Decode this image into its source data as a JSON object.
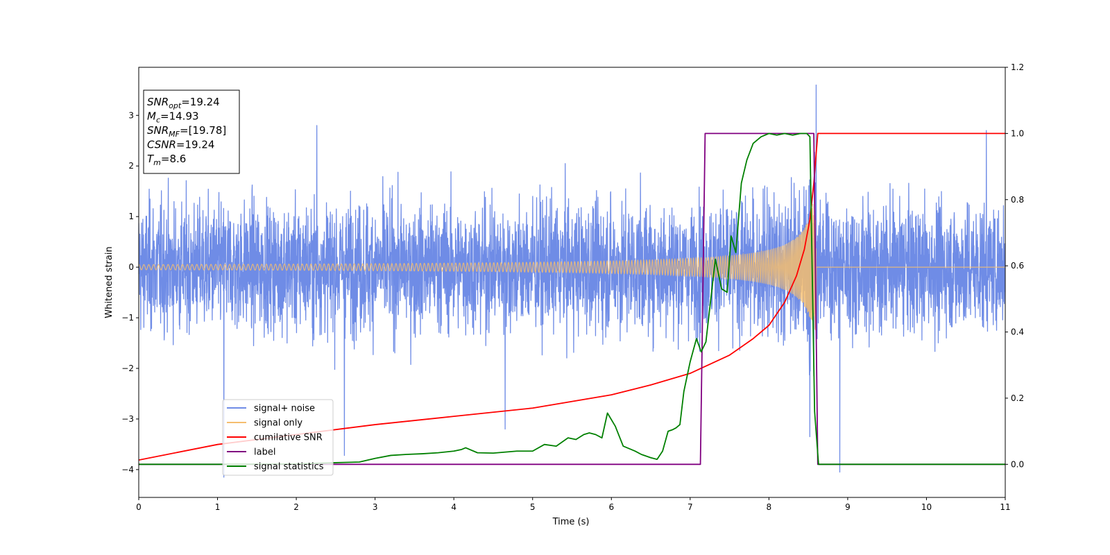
{
  "chart_data": {
    "type": "line",
    "xlabel": "Time (s)",
    "ylabel_left": "Whitened strain",
    "xlim": [
      0,
      11
    ],
    "ylim_left": [
      -4.55,
      3.95
    ],
    "ylim_right": [
      -0.1,
      1.2
    ],
    "xticks": [
      0,
      1,
      2,
      3,
      4,
      5,
      6,
      7,
      8,
      9,
      10,
      11
    ],
    "yticks_left": [
      -4,
      -3,
      -2,
      -1,
      0,
      1,
      2,
      3
    ],
    "yticks_right": [
      0.0,
      0.2,
      0.4,
      0.6,
      0.8,
      1.0,
      1.2
    ],
    "grid": false,
    "legend_position": "lower-left",
    "annotation": {
      "lines": [
        {
          "sym": "SNR",
          "sub": "opt",
          "text": "=19.24"
        },
        {
          "sym": "M",
          "sub": "c",
          "text": "=14.93"
        },
        {
          "sym": "SNR",
          "sub": "MF",
          "text": "=[19.78]"
        },
        {
          "sym": "CSNR",
          "sub": "",
          "text": "=19.24"
        },
        {
          "sym": "T",
          "sub": "m",
          "text": "=8.6"
        }
      ]
    },
    "series": [
      {
        "name": "signal+ noise",
        "axis": "left",
        "color": "#6f8ce6",
        "description": "whitened strain, noise amplitude about 0.6, extremes near 3.6 and -4.15",
        "outliers": [
          [
            1.08,
            -4.15
          ],
          [
            2.26,
            2.8
          ],
          [
            2.61,
            -3.72
          ],
          [
            4.65,
            -3.2
          ],
          [
            8.52,
            -3.35
          ],
          [
            8.6,
            3.6
          ],
          [
            8.9,
            -4.05
          ],
          [
            10.76,
            2.7
          ]
        ]
      },
      {
        "name": "signal only",
        "axis": "left",
        "color": "#f5bd6e",
        "description": "chirp, amplitude rising from 0.05 to about 1.2, merger near 8.6 s",
        "t_merge": 8.6
      },
      {
        "name": "cumilative SNR",
        "axis": "right",
        "color": "#ff0000",
        "x": [
          0,
          1,
          2,
          3,
          4,
          5,
          6,
          6.5,
          7,
          7.5,
          7.8,
          8.0,
          8.2,
          8.35,
          8.45,
          8.52,
          8.57,
          8.6,
          8.62,
          11
        ],
        "y": [
          0.013,
          0.06,
          0.09,
          0.12,
          0.145,
          0.17,
          0.21,
          0.24,
          0.275,
          0.33,
          0.38,
          0.42,
          0.49,
          0.57,
          0.65,
          0.74,
          0.85,
          0.94,
          1.0,
          1.0
        ]
      },
      {
        "name": "label",
        "axis": "right",
        "color": "#800080",
        "x": [
          0,
          7.13,
          7.19,
          8.57,
          8.62,
          11
        ],
        "y": [
          0,
          0,
          1,
          1,
          0,
          0
        ]
      },
      {
        "name": "signal statistics",
        "axis": "right",
        "color": "#008000",
        "x": [
          0,
          1,
          2,
          2.5,
          2.8,
          3.0,
          3.2,
          3.4,
          3.6,
          3.8,
          4.0,
          4.1,
          4.15,
          4.3,
          4.5,
          4.8,
          5.0,
          5.15,
          5.3,
          5.45,
          5.55,
          5.65,
          5.72,
          5.8,
          5.88,
          5.95,
          6.05,
          6.15,
          6.3,
          6.38,
          6.5,
          6.58,
          6.65,
          6.72,
          6.78,
          6.82,
          6.87,
          6.92,
          7.0,
          7.08,
          7.14,
          7.2,
          7.32,
          7.4,
          7.47,
          7.52,
          7.58,
          7.65,
          7.72,
          7.8,
          7.9,
          8.0,
          8.1,
          8.2,
          8.3,
          8.4,
          8.48,
          8.52,
          8.58,
          8.63,
          11
        ],
        "y": [
          0,
          0,
          0.001,
          0.005,
          0.007,
          0.018,
          0.027,
          0.03,
          0.032,
          0.035,
          0.04,
          0.045,
          0.05,
          0.035,
          0.034,
          0.04,
          0.04,
          0.06,
          0.055,
          0.08,
          0.075,
          0.09,
          0.095,
          0.09,
          0.08,
          0.155,
          0.115,
          0.055,
          0.04,
          0.03,
          0.02,
          0.015,
          0.04,
          0.1,
          0.105,
          0.11,
          0.12,
          0.22,
          0.31,
          0.38,
          0.34,
          0.37,
          0.62,
          0.53,
          0.52,
          0.69,
          0.64,
          0.85,
          0.92,
          0.97,
          0.99,
          1.0,
          0.995,
          1.0,
          0.995,
          1.0,
          1.0,
          0.99,
          0.16,
          0.0,
          0.0
        ]
      }
    ]
  }
}
